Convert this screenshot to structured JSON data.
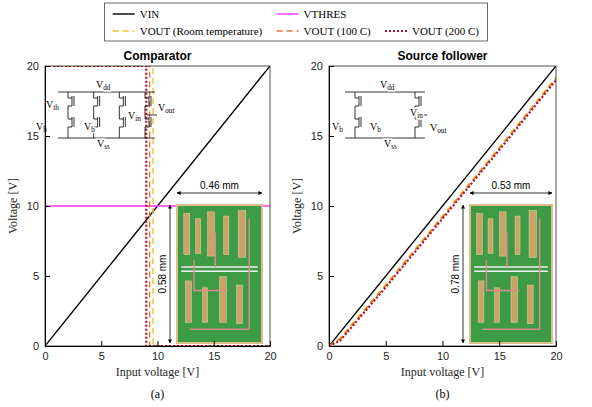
{
  "chart_data": [
    {
      "type": "line",
      "title": "Comparator",
      "panel_label": "(a)",
      "x_label": "Input voltage [V]",
      "y_label": "Voltage [V]",
      "xlim": [
        0,
        20
      ],
      "ylim": [
        0,
        20
      ],
      "xticks": [
        0,
        5,
        10,
        15,
        20
      ],
      "yticks": [
        0,
        5,
        10,
        15,
        20
      ],
      "grid": false,
      "legend": "top",
      "series": [
        {
          "name": "VIN",
          "color": "#000000",
          "line_style": "solid",
          "x": [
            0,
            20
          ],
          "values": [
            0,
            20
          ]
        },
        {
          "name": "VTHRES",
          "color": "#ff33ff",
          "line_style": "solid",
          "x": [
            0,
            20
          ],
          "values": [
            10,
            10
          ]
        },
        {
          "name": "VOUT (Room temperature)",
          "color": "#f2c12e",
          "line_style": "dashed",
          "x": [
            0,
            9.6,
            9.6,
            20
          ],
          "values": [
            20,
            20,
            0,
            0
          ]
        },
        {
          "name": "VOUT (100 C)",
          "color": "#e8772e",
          "line_style": "dashed",
          "x": [
            0,
            9.3,
            9.3,
            20
          ],
          "values": [
            20,
            20,
            0,
            0
          ]
        },
        {
          "name": "VOUT (200 C)",
          "color": "#b01030",
          "line_style": "dotted",
          "x": [
            0,
            9.0,
            9.0,
            20
          ],
          "values": [
            20,
            20,
            0,
            0
          ]
        }
      ],
      "schematic_labels": [
        "Vdd",
        "Vth",
        "Vb",
        "Vin",
        "Vb",
        "Vss",
        "Vout"
      ],
      "photo_width_label": "0.46 mm",
      "photo_height_label": "0.58 mm"
    },
    {
      "type": "line",
      "title": "Source follower",
      "panel_label": "(b)",
      "x_label": "Input voltage [V]",
      "y_label": "Voltage [V]",
      "xlim": [
        0,
        20
      ],
      "ylim": [
        0,
        20
      ],
      "xticks": [
        0,
        5,
        10,
        15,
        20
      ],
      "yticks": [
        0,
        5,
        10,
        15,
        20
      ],
      "grid": false,
      "series": [
        {
          "color": "#000000",
          "line_style": "solid",
          "x": [
            0,
            20
          ],
          "values": [
            0,
            20
          ]
        },
        {
          "color": "#f2c12e",
          "line_style": "dashed",
          "x": [
            0,
            1,
            5,
            10,
            15,
            20
          ],
          "values": [
            0,
            0.6,
            4.4,
            9.3,
            14.2,
            19.2
          ]
        },
        {
          "color": "#e8772e",
          "line_style": "dashed",
          "x": [
            0,
            1,
            5,
            10,
            15,
            20
          ],
          "values": [
            0,
            0.5,
            4.3,
            9.2,
            14.1,
            19.1
          ]
        },
        {
          "color": "#b01030",
          "line_style": "dotted",
          "x": [
            0,
            1,
            5,
            10,
            15,
            20
          ],
          "values": [
            0,
            0.4,
            4.2,
            9.1,
            14.0,
            19.0
          ]
        }
      ],
      "schematic_labels": [
        "Vdd",
        "Vb",
        "Vin",
        "Vb",
        "Vss",
        "Vout"
      ],
      "photo_width_label": "0.53 mm",
      "photo_height_label": "0.78 mm"
    }
  ]
}
